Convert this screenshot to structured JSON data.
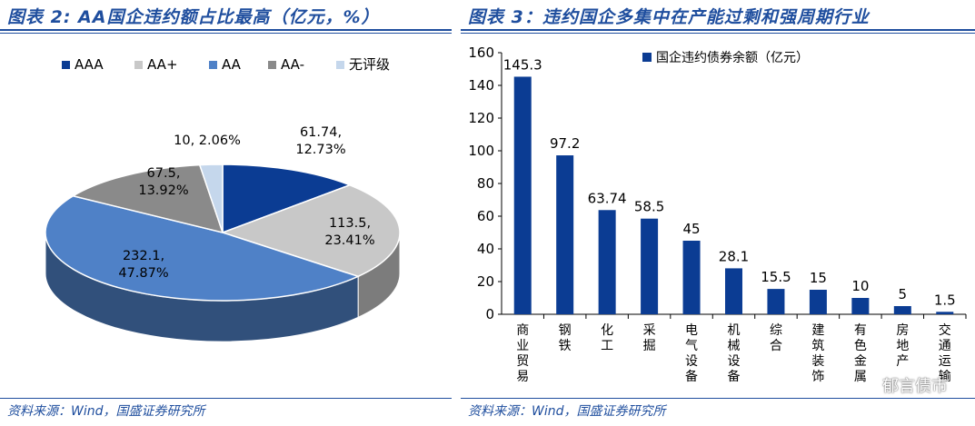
{
  "left": {
    "title": "图表 2: AA国企违约额占比最高（亿元，%）",
    "source": "资料来源：Wind，国盛证券研究所"
  },
  "right": {
    "title": "图表 3：违约国企多集中在产能过剩和强周期行业",
    "source": "资料来源：Wind，国盛证券研究所"
  },
  "watermark": "郁言债市",
  "chart_data": [
    {
      "type": "pie",
      "title": "AA国企违约额占比最高（亿元，%）",
      "categories": [
        "AAA",
        "AA+",
        "AA",
        "AA-",
        "无评级"
      ],
      "values": [
        61.74,
        113.5,
        232.1,
        67.5,
        10
      ],
      "percents": [
        "12.73%",
        "23.41%",
        "47.87%",
        "13.92%",
        "2.06%"
      ],
      "data_labels": [
        "61.74, 12.73%",
        "113.5, 23.41%",
        "232.1, 47.87%",
        "67.5, 13.92%",
        "10, 2.06%"
      ],
      "colors": [
        "#0b3c93",
        "#c8c8c8",
        "#4f81c7",
        "#8a8a8a",
        "#c5d7ec"
      ],
      "legend_position": "top"
    },
    {
      "type": "bar",
      "title": "违约国企多集中在产能过剩和强周期行业",
      "categories": [
        "商业贸易",
        "钢铁",
        "化工",
        "采掘",
        "电气设备",
        "机械设备",
        "综合",
        "建筑装饰",
        "有色金属",
        "房地产",
        "交通运输"
      ],
      "series": [
        {
          "name": "国企违约债券余额（亿元）",
          "values": [
            145.3,
            97.2,
            63.74,
            58.5,
            45,
            28.1,
            15.5,
            15,
            10,
            5,
            1.5
          ]
        }
      ],
      "data_labels": [
        "145.3",
        "97.2",
        "63.74",
        "58.5",
        "45",
        "28.1",
        "15.5",
        "15",
        "10",
        "5",
        "1.5"
      ],
      "ylim": [
        0,
        160
      ],
      "yticks": [
        "0",
        "20",
        "40",
        "60",
        "80",
        "100",
        "120",
        "140",
        "160"
      ],
      "color": "#0b3c93",
      "legend_position": "top-center"
    }
  ]
}
